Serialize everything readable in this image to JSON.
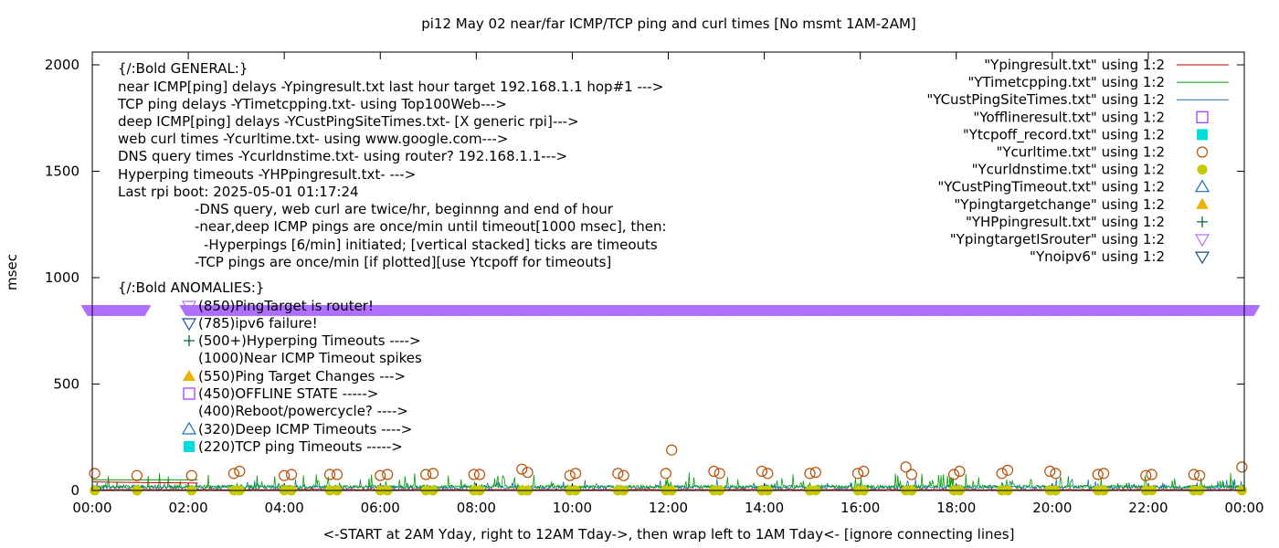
{
  "chart_data": {
    "type": "scatter",
    "title": "pi12 May 02  near/far ICMP/TCP ping and curl times [No msmt 1AM-2AM]",
    "xlabel": "<-START at 2AM Yday, right to 12AM Tday->, then wrap left to 1AM Tday<- [ignore connecting lines]",
    "ylabel": "msec",
    "xlim": [
      0,
      24
    ],
    "ylim": [
      0,
      2060
    ],
    "x_ticks": [
      "00:00",
      "02:00",
      "04:00",
      "06:00",
      "08:00",
      "10:00",
      "12:00",
      "14:00",
      "16:00",
      "18:00",
      "20:00",
      "22:00",
      "00:00"
    ],
    "y_ticks": [
      0,
      500,
      1000,
      1500,
      2000
    ],
    "legend_position": "top-right",
    "colors": {
      "pingresult": "#cc0000",
      "timetcpping": "#00a000",
      "custping": "#1a6fc4",
      "offline": "#9b30ff",
      "tcpoff": "#00dddd",
      "curltime": "#b84d00",
      "curldnstime": "#c8c800",
      "custtimeout": "#1a6fc4",
      "targetchange": "#f0b000",
      "hpping": "#006633",
      "routertarget": "#b070ff",
      "noipv6": "#1a4f8f"
    },
    "series": [
      {
        "name": "\"Ypingresult.txt\" using 1:2",
        "style": "line",
        "color": "#cc0000"
      },
      {
        "name": "\"YTimetcpping.txt\" using 1:2",
        "style": "line",
        "color": "#00a000"
      },
      {
        "name": "\"YCustPingSiteTimes.txt\" using 1:2",
        "style": "line",
        "color": "#1a6fc4"
      },
      {
        "name": "\"Yofflineresult.txt\" using 1:2",
        "style": "open-square",
        "color": "#9b30ff"
      },
      {
        "name": "\"Ytcpoff_record.txt\" using 1:2",
        "style": "filled-square",
        "color": "#00dddd"
      },
      {
        "name": "\"Ycurltime.txt\" using 1:2",
        "style": "open-circle",
        "color": "#b84d00",
        "x": [
          0.05,
          0.93,
          2.07,
          2.95,
          3.07,
          4.0,
          4.15,
          4.95,
          5.1,
          6.0,
          6.15,
          6.95,
          7.1,
          7.95,
          8.07,
          8.95,
          9.07,
          9.95,
          10.07,
          10.95,
          11.07,
          11.95,
          12.07,
          12.95,
          13.07,
          13.95,
          14.07,
          14.95,
          15.07,
          15.95,
          16.07,
          16.95,
          17.07,
          17.95,
          18.07,
          18.95,
          19.07,
          19.95,
          20.07,
          20.95,
          21.07,
          21.95,
          22.07,
          22.95,
          23.07,
          23.95
        ],
        "y": [
          80,
          70,
          70,
          80,
          90,
          70,
          75,
          75,
          75,
          70,
          75,
          75,
          80,
          75,
          75,
          100,
          85,
          70,
          80,
          80,
          70,
          80,
          190,
          90,
          80,
          90,
          80,
          80,
          85,
          80,
          90,
          110,
          75,
          75,
          90,
          80,
          95,
          90,
          80,
          75,
          80,
          70,
          75,
          75,
          70,
          110
        ]
      },
      {
        "name": "\"Ycurldnstime.txt\" using 1:2",
        "style": "filled-circle",
        "color": "#c8c800",
        "x": [
          0.05,
          0.93,
          2.07,
          2.95,
          3.07,
          4.0,
          4.15,
          4.95,
          5.1,
          6.0,
          6.15,
          6.95,
          7.1,
          7.95,
          8.07,
          8.95,
          9.07,
          9.95,
          10.07,
          10.95,
          11.07,
          11.95,
          12.07,
          12.95,
          13.07,
          13.95,
          14.07,
          14.95,
          15.07,
          15.95,
          16.07,
          16.95,
          17.07,
          17.95,
          18.07,
          18.95,
          19.07,
          19.95,
          20.07,
          20.95,
          21.07,
          21.95,
          22.07,
          22.95,
          23.07,
          23.95
        ],
        "y": [
          0,
          0,
          0,
          0,
          0,
          0,
          0,
          0,
          0,
          0,
          0,
          0,
          0,
          0,
          0,
          0,
          0,
          0,
          0,
          0,
          0,
          0,
          0,
          0,
          0,
          0,
          0,
          0,
          0,
          0,
          0,
          0,
          0,
          0,
          0,
          0,
          0,
          0,
          0,
          0,
          0,
          0,
          0,
          0,
          0,
          0
        ]
      },
      {
        "name": "\"YCustPingTimeout.txt\" using 1:2",
        "style": "open-triangle-up",
        "color": "#1a6fc4"
      },
      {
        "name": "\"Ypingtargetchange\" using 1:2",
        "style": "filled-triangle-up",
        "color": "#f0b000"
      },
      {
        "name": "\"YHPpingresult.txt\" using 1:2",
        "style": "plus",
        "color": "#006633"
      },
      {
        "name": "\"YpingtargetISrouter\" using 1:2",
        "style": "open-triangle-down",
        "color": "#b070ff",
        "y_const": 850,
        "x_ranges": [
          [
            -0.1,
            1.1
          ],
          [
            1.95,
            24.2
          ]
        ]
      },
      {
        "name": "\"Ynoipv6\" using 1:2",
        "style": "open-triangle-down",
        "color": "#1a4f8f"
      }
    ],
    "annotations": [
      "{/:Bold GENERAL:}",
      "near ICMP[ping] delays -Ypingresult.txt last hour target 192.168.1.1 hop#1 --->",
      "TCP ping delays -YTimetcpping.txt- using Top100Web--->",
      "deep ICMP[ping] delays -YCustPingSiteTimes.txt- [X generic rpi]--->",
      "web curl times -Ycurltime.txt- using www.google.com--->",
      "DNS query times -Ycurldnstime.txt- using router? 192.168.1.1--->",
      "Hyperping timeouts -YHPpingresult.txt- --->",
      "Last rpi boot: 2025-05-01 01:17:24",
      "-DNS query, web curl are twice/hr, beginnng and end of hour",
      "-near,deep ICMP pings are once/min until timeout[1000 msec], then:",
      "-Hyperpings [6/min] initiated; [vertical stacked] ticks are timeouts",
      "-TCP pings are once/min [if plotted][use Ytcpoff for timeouts]",
      "{/:Bold ANOMALIES:}",
      "(850)PingTarget is router!",
      "(785)ipv6 failure!",
      "(500+)Hyperping Timeouts ---->",
      "(1000)Near ICMP Timeout spikes",
      "(550)Ping Target Changes --->",
      "(450)OFFLINE STATE ----->",
      "(400)Reboot/powercycle? ---->",
      "(320)Deep ICMP Timeouts ---->",
      "(220)TCP ping Timeouts ----->"
    ]
  }
}
